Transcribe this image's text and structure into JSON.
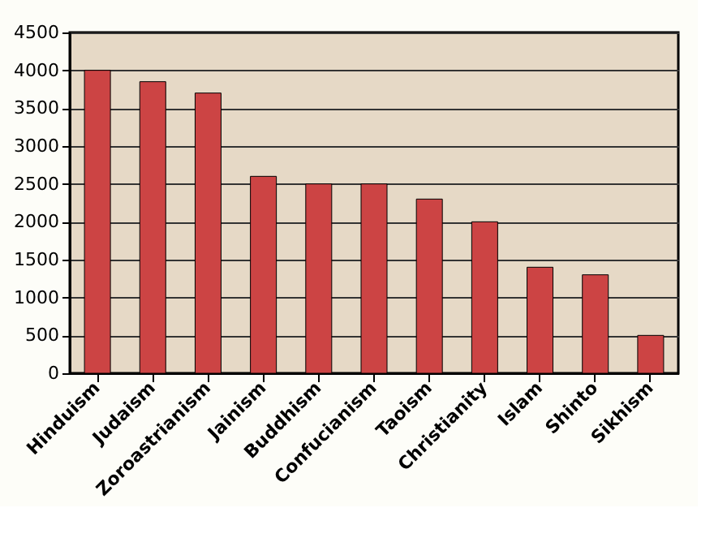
{
  "chart_data": {
    "type": "bar",
    "categories": [
      "Hinduism",
      "Judaism",
      "Zoroastrianism",
      "Jainism",
      "Buddhism",
      "Confucianism",
      "Taoism",
      "Christianity",
      "Islam",
      "Shinto",
      "Sikhism"
    ],
    "values": [
      4000,
      3850,
      3700,
      2600,
      2500,
      2500,
      2300,
      2000,
      1400,
      1300,
      500
    ],
    "color": "#cc4444",
    "ylim": [
      0,
      4500
    ],
    "yticks": [
      0,
      500,
      1000,
      1500,
      2000,
      2500,
      3000,
      3500,
      4000,
      4500
    ],
    "grid": "y"
  }
}
